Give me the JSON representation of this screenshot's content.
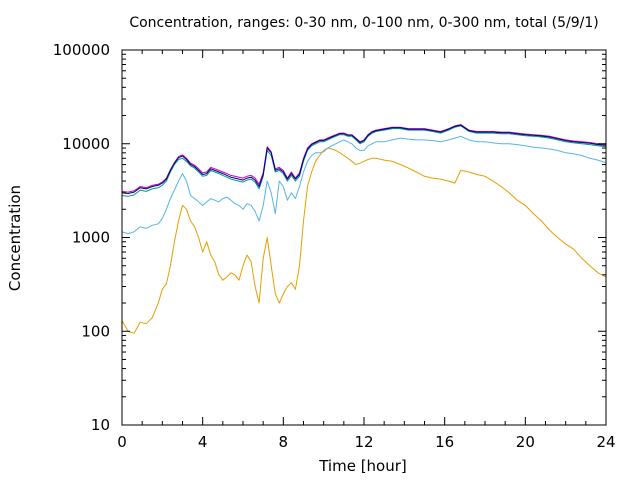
{
  "chart_data": {
    "type": "line",
    "title": "Concentration, ranges: 0-30 nm, 0-100 nm, 0-300 nm, total (5/9/1)",
    "xlabel": "Time [hour]",
    "ylabel": "Concentration",
    "xlim": [
      0,
      24
    ],
    "ylim": [
      10,
      100000
    ],
    "yscale": "log",
    "grid": false,
    "legend": "none",
    "x_ticks": [
      "0",
      "4",
      "8",
      "12",
      "16",
      "20",
      "24"
    ],
    "y_ticks": [
      "10",
      "100",
      "1000",
      "10000",
      "100000"
    ],
    "series": [
      {
        "color": "#e69f00",
        "x": [
          0,
          0.3,
          0.6,
          0.9,
          1.2,
          1.5,
          1.8,
          2.0,
          2.2,
          2.4,
          2.6,
          2.8,
          3.0,
          3.2,
          3.4,
          3.6,
          3.8,
          4.0,
          4.2,
          4.4,
          4.6,
          4.8,
          5.0,
          5.2,
          5.4,
          5.6,
          5.8,
          6.0,
          6.2,
          6.4,
          6.6,
          6.8,
          7.0,
          7.2,
          7.4,
          7.6,
          7.8,
          8.0,
          8.2,
          8.4,
          8.6,
          8.8,
          9.0,
          9.2,
          9.4,
          9.6,
          9.8,
          10.0,
          10.2,
          10.4,
          10.6,
          10.8,
          11.0,
          11.2,
          11.4,
          11.6,
          11.8,
          12.0,
          12.2,
          12.4,
          12.6,
          13.0,
          13.4,
          13.8,
          14.2,
          14.6,
          15.0,
          15.4,
          15.8,
          16.2,
          16.5,
          16.8,
          17.2,
          17.6,
          18.0,
          18.4,
          18.8,
          19.2,
          19.6,
          20.0,
          20.4,
          20.8,
          21.2,
          21.6,
          22.0,
          22.4,
          22.8,
          23.2,
          23.6,
          24.0
        ],
        "y": [
          130,
          100,
          95,
          125,
          120,
          140,
          200,
          280,
          320,
          500,
          900,
          1500,
          2200,
          2000,
          1500,
          1300,
          1000,
          700,
          900,
          650,
          550,
          400,
          350,
          380,
          420,
          400,
          350,
          500,
          650,
          550,
          300,
          200,
          600,
          1000,
          500,
          250,
          200,
          250,
          300,
          330,
          280,
          500,
          1500,
          3500,
          5000,
          6500,
          7500,
          8500,
          9000,
          8800,
          8500,
          8000,
          7500,
          7000,
          6500,
          6000,
          6200,
          6500,
          6800,
          7000,
          7000,
          6700,
          6500,
          6000,
          5500,
          5000,
          4500,
          4300,
          4200,
          4000,
          3800,
          5200,
          5000,
          4700,
          4500,
          4000,
          3500,
          3000,
          2500,
          2200,
          1800,
          1500,
          1200,
          1000,
          850,
          750,
          600,
          500,
          420,
          380
        ]
      },
      {
        "color": "#56b4e9",
        "x": [
          0,
          0.3,
          0.6,
          0.9,
          1.2,
          1.5,
          1.8,
          2.0,
          2.2,
          2.4,
          2.6,
          2.8,
          3.0,
          3.2,
          3.4,
          3.6,
          3.8,
          4.0,
          4.2,
          4.4,
          4.6,
          4.8,
          5.0,
          5.2,
          5.4,
          5.6,
          5.8,
          6.0,
          6.2,
          6.4,
          6.6,
          6.8,
          7.0,
          7.2,
          7.4,
          7.6,
          7.8,
          8.0,
          8.2,
          8.4,
          8.6,
          8.8,
          9.0,
          9.2,
          9.4,
          9.6,
          9.8,
          10.0,
          10.2,
          10.4,
          10.6,
          10.8,
          11.0,
          11.2,
          11.4,
          11.6,
          11.8,
          12.0,
          12.2,
          12.4,
          12.6,
          13.0,
          13.4,
          13.8,
          14.2,
          14.6,
          15.0,
          15.4,
          15.8,
          16.2,
          16.5,
          16.8,
          17.2,
          17.6,
          18.0,
          18.4,
          18.8,
          19.2,
          19.6,
          20.0,
          20.4,
          20.8,
          21.2,
          21.6,
          22.0,
          22.4,
          22.8,
          23.2,
          23.6,
          24.0
        ],
        "y": [
          1150,
          1100,
          1150,
          1300,
          1250,
          1350,
          1400,
          1600,
          2000,
          2600,
          3200,
          4000,
          4800,
          4000,
          2800,
          2600,
          2400,
          2200,
          2400,
          2600,
          2500,
          2400,
          2600,
          2700,
          2500,
          2300,
          2200,
          2000,
          2300,
          2200,
          1900,
          1500,
          2200,
          4000,
          3000,
          1800,
          4000,
          3500,
          2500,
          3000,
          2600,
          3500,
          5000,
          6500,
          7500,
          8000,
          8000,
          8200,
          9000,
          9500,
          10000,
          10500,
          11000,
          10500,
          10000,
          9000,
          8500,
          8500,
          9500,
          10000,
          10500,
          10500,
          11000,
          11500,
          11200,
          11000,
          11000,
          10800,
          10500,
          11000,
          11500,
          12000,
          11000,
          10500,
          10500,
          10200,
          10000,
          10000,
          9800,
          9500,
          9200,
          9000,
          8800,
          8500,
          8000,
          7800,
          7500,
          7000,
          6700,
          6300
        ]
      },
      {
        "color": "#009e73",
        "x": [
          0,
          0.3,
          0.6,
          0.9,
          1.2,
          1.5,
          1.8,
          2.0,
          2.2,
          2.4,
          2.6,
          2.8,
          3.0,
          3.2,
          3.4,
          3.6,
          3.8,
          4.0,
          4.2,
          4.4,
          4.6,
          4.8,
          5.0,
          5.2,
          5.4,
          5.6,
          5.8,
          6.0,
          6.2,
          6.4,
          6.6,
          6.8,
          7.0,
          7.2,
          7.4,
          7.6,
          7.8,
          8.0,
          8.2,
          8.4,
          8.6,
          8.8,
          9.0,
          9.2,
          9.4,
          9.6,
          9.8,
          10.0,
          10.2,
          10.4,
          10.6,
          10.8,
          11.0,
          11.2,
          11.4,
          11.6,
          11.8,
          12.0,
          12.2,
          12.4,
          12.6,
          13.0,
          13.4,
          13.8,
          14.2,
          14.6,
          15.0,
          15.4,
          15.8,
          16.2,
          16.5,
          16.8,
          17.2,
          17.6,
          18.0,
          18.4,
          18.8,
          19.2,
          19.6,
          20.0,
          20.4,
          20.8,
          21.2,
          21.6,
          22.0,
          22.4,
          22.8,
          23.2,
          23.6,
          24.0
        ],
        "y": [
          2800,
          2750,
          2850,
          3200,
          3100,
          3300,
          3400,
          3600,
          4000,
          5000,
          6000,
          6800,
          7000,
          6500,
          5800,
          5500,
          5000,
          4500,
          4600,
          5200,
          5000,
          4800,
          4600,
          4400,
          4200,
          4100,
          4000,
          3900,
          4100,
          4200,
          3900,
          3300,
          4500,
          8500,
          7500,
          5000,
          5200,
          4800,
          4000,
          4600,
          4000,
          4500,
          6500,
          8500,
          9500,
          10000,
          10500,
          10500,
          11000,
          11500,
          12000,
          12500,
          12500,
          12000,
          12000,
          11000,
          10000,
          10500,
          12000,
          13000,
          13500,
          14000,
          14500,
          14500,
          14000,
          14000,
          14000,
          13500,
          13000,
          14000,
          15000,
          15500,
          13500,
          13000,
          13000,
          13000,
          12800,
          12800,
          12500,
          12200,
          12000,
          11800,
          11500,
          11000,
          10500,
          10200,
          10000,
          9800,
          9500,
          9300
        ]
      },
      {
        "color": "#cc00cc",
        "x": [
          0,
          0.3,
          0.6,
          0.9,
          1.2,
          1.5,
          1.8,
          2.0,
          2.2,
          2.4,
          2.6,
          2.8,
          3.0,
          3.2,
          3.4,
          3.6,
          3.8,
          4.0,
          4.2,
          4.4,
          4.6,
          4.8,
          5.0,
          5.2,
          5.4,
          5.6,
          5.8,
          6.0,
          6.2,
          6.4,
          6.6,
          6.8,
          7.0,
          7.2,
          7.4,
          7.6,
          7.8,
          8.0,
          8.2,
          8.4,
          8.6,
          8.8,
          9.0,
          9.2,
          9.4,
          9.6,
          9.8,
          10.0,
          10.2,
          10.4,
          10.6,
          10.8,
          11.0,
          11.2,
          11.4,
          11.6,
          11.8,
          12.0,
          12.2,
          12.4,
          12.6,
          13.0,
          13.4,
          13.8,
          14.2,
          14.6,
          15.0,
          15.4,
          15.8,
          16.2,
          16.5,
          16.8,
          17.2,
          17.6,
          18.0,
          18.4,
          18.8,
          19.2,
          19.6,
          20.0,
          20.4,
          20.8,
          21.2,
          21.6,
          22.0,
          22.4,
          22.8,
          23.2,
          23.6,
          24.0
        ],
        "y": [
          3100,
          3050,
          3150,
          3500,
          3400,
          3600,
          3700,
          3900,
          4300,
          5300,
          6300,
          7300,
          7600,
          7000,
          6200,
          5900,
          5400,
          4900,
          5000,
          5600,
          5400,
          5200,
          5000,
          4800,
          4600,
          4500,
          4400,
          4300,
          4500,
          4600,
          4300,
          3700,
          4900,
          9300,
          8200,
          5400,
          5600,
          5200,
          4300,
          5000,
          4300,
          4900,
          7000,
          9000,
          10000,
          10500,
          11000,
          11000,
          11500,
          12000,
          12500,
          13000,
          13000,
          12500,
          12500,
          11500,
          10500,
          11000,
          12500,
          13500,
          14000,
          14500,
          15000,
          15000,
          14500,
          14500,
          14500,
          14000,
          13500,
          14500,
          15500,
          16000,
          14000,
          13500,
          13500,
          13500,
          13300,
          13300,
          13000,
          12700,
          12500,
          12300,
          12000,
          11500,
          11000,
          10700,
          10500,
          10300,
          10000,
          9800
        ]
      },
      {
        "color": "#000080",
        "x": [
          0,
          0.3,
          0.6,
          0.9,
          1.2,
          1.5,
          1.8,
          2.0,
          2.2,
          2.4,
          2.6,
          2.8,
          3.0,
          3.2,
          3.4,
          3.6,
          3.8,
          4.0,
          4.2,
          4.4,
          4.6,
          4.8,
          5.0,
          5.2,
          5.4,
          5.6,
          5.8,
          6.0,
          6.2,
          6.4,
          6.6,
          6.8,
          7.0,
          7.2,
          7.4,
          7.6,
          7.8,
          8.0,
          8.2,
          8.4,
          8.6,
          8.8,
          9.0,
          9.2,
          9.4,
          9.6,
          9.8,
          10.0,
          10.2,
          10.4,
          10.6,
          10.8,
          11.0,
          11.2,
          11.4,
          11.6,
          11.8,
          12.0,
          12.2,
          12.4,
          12.6,
          13.0,
          13.4,
          13.8,
          14.2,
          14.6,
          15.0,
          15.4,
          15.8,
          16.2,
          16.5,
          16.8,
          17.2,
          17.6,
          18.0,
          18.4,
          18.8,
          19.2,
          19.6,
          20.0,
          20.4,
          20.8,
          21.2,
          21.6,
          22.0,
          22.4,
          22.8,
          23.2,
          23.6,
          24.0
        ],
        "y": [
          3000,
          2950,
          3050,
          3400,
          3300,
          3500,
          3600,
          3800,
          4200,
          5200,
          6200,
          7100,
          7400,
          6800,
          6000,
          5700,
          5200,
          4700,
          4800,
          5400,
          5200,
          5000,
          4800,
          4600,
          4400,
          4300,
          4200,
          4100,
          4300,
          4400,
          4100,
          3500,
          4700,
          9000,
          8000,
          5200,
          5400,
          5000,
          4200,
          4800,
          4200,
          4700,
          6800,
          8800,
          9800,
          10300,
          10800,
          10800,
          11300,
          11800,
          12300,
          12800,
          12800,
          12300,
          12300,
          11300,
          10300,
          10800,
          12300,
          13300,
          13800,
          14300,
          14800,
          14800,
          14300,
          14300,
          14300,
          13800,
          13300,
          14300,
          15300,
          15800,
          13800,
          13300,
          13300,
          13300,
          13100,
          13100,
          12800,
          12500,
          12300,
          12100,
          11800,
          11300,
          10800,
          10500,
          10300,
          10100,
          9800,
          9600
        ]
      }
    ]
  }
}
